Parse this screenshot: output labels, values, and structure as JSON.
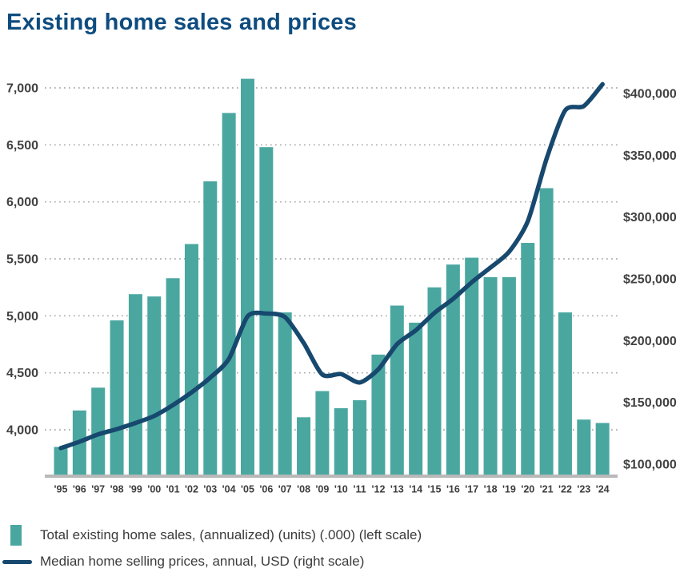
{
  "title": "Existing home sales and prices",
  "chart_data": {
    "type": "bar",
    "subtype": "combo-bar-line",
    "categories": [
      "'95",
      "'96",
      "'97",
      "'98",
      "'99",
      "'00",
      "'01",
      "'02",
      "'03",
      "'04",
      "'05",
      "'06",
      "'07",
      "'08",
      "'09",
      "'10",
      "'11",
      "'12",
      "'13",
      "'14",
      "'15",
      "'16",
      "'17",
      "'18",
      "'19",
      "'20",
      "'21",
      "'22",
      "'23",
      "'24"
    ],
    "series": [
      {
        "name": "Total existing home sales, (annualized) (units) (.000) (left scale)",
        "type": "bar",
        "axis": "left",
        "color": "#4aa7a0",
        "values": [
          3850,
          4170,
          4370,
          4960,
          5190,
          5170,
          5330,
          5630,
          6180,
          6780,
          7080,
          6480,
          5030,
          4110,
          4340,
          4190,
          4260,
          4660,
          5090,
          4940,
          5250,
          5450,
          5510,
          5340,
          5340,
          5640,
          6120,
          5030,
          4090,
          4060
        ]
      },
      {
        "name": "Median home selling prices, annual, USD (right scale)",
        "type": "line",
        "axis": "right",
        "color": "#17486e",
        "values": [
          113000,
          118200,
          124100,
          128400,
          133300,
          139000,
          147800,
          158100,
          170000,
          185200,
          219600,
          221900,
          219000,
          198100,
          172500,
          172900,
          166100,
          176800,
          197100,
          208300,
          222400,
          233800,
          247200,
          259100,
          271900,
          296700,
          346900,
          386300,
          389800,
          407500
        ]
      }
    ],
    "left_axis": {
      "min": 4000,
      "max": 7000,
      "ticks": [
        {
          "label": "4,000",
          "value": 4000
        },
        {
          "label": "4,500",
          "value": 4500
        },
        {
          "label": "5,000",
          "value": 5000
        },
        {
          "label": "5,500",
          "value": 5500
        },
        {
          "label": "6,000",
          "value": 6000
        },
        {
          "label": "6,500",
          "value": 6500
        },
        {
          "label": "7,000",
          "value": 7000
        }
      ]
    },
    "right_axis": {
      "min": 100000,
      "max": 400000,
      "ticks": [
        {
          "label": "$100,000",
          "value": 100000
        },
        {
          "label": "$150,000",
          "value": 150000
        },
        {
          "label": "$200,000",
          "value": 200000
        },
        {
          "label": "$250,000",
          "value": 250000
        },
        {
          "label": "$300,000",
          "value": 300000
        },
        {
          "label": "$350,000",
          "value": 350000
        },
        {
          "label": "$400,000",
          "value": 400000
        }
      ]
    },
    "grid": "horizontal-dotted",
    "legend_position": "bottom-left",
    "colors": {
      "title": "#0e4c7f",
      "bars": "#4aa7a0",
      "line": "#17486e",
      "axis_text": "#414141",
      "gridline": "#ababab",
      "baseline": "#b8b8b8"
    }
  },
  "legend": {
    "items": [
      {
        "label": "Total existing home sales, (annualized) (units) (.000) (left scale)",
        "swatch": "square",
        "color": "#4aa7a0"
      },
      {
        "label": "Median home selling prices, annual, USD (right scale)",
        "swatch": "line",
        "color": "#17486e"
      }
    ]
  }
}
